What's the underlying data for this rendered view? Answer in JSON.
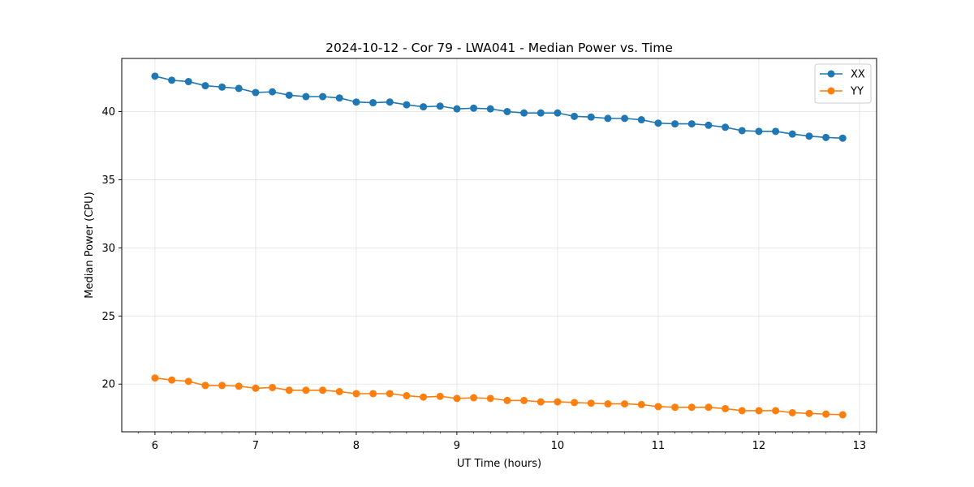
{
  "chart_data": {
    "type": "line",
    "title": "2024-10-12 - Cor 79 - LWA041 - Median Power vs. Time",
    "xlabel": "UT Time (hours)",
    "ylabel": "Median Power (CPU)",
    "xlim": [
      5.67,
      13.17
    ],
    "ylim": [
      16.5,
      43.9
    ],
    "xticks": [
      6,
      7,
      8,
      9,
      10,
      11,
      12,
      13
    ],
    "yticks": [
      20,
      25,
      30,
      35,
      40
    ],
    "grid": true,
    "legend_position": "top-right",
    "x": [
      6.0,
      6.1667,
      6.3333,
      6.5,
      6.6667,
      6.8333,
      7.0,
      7.1667,
      7.3333,
      7.5,
      7.6667,
      7.8333,
      8.0,
      8.1667,
      8.3333,
      8.5,
      8.6667,
      8.8333,
      9.0,
      9.1667,
      9.3333,
      9.5,
      9.6667,
      9.8333,
      10.0,
      10.1667,
      10.3333,
      10.5,
      10.6667,
      10.8333,
      11.0,
      11.1667,
      11.3333,
      11.5,
      11.6667,
      11.8333,
      12.0,
      12.1667,
      12.3333,
      12.5,
      12.6667,
      12.8333
    ],
    "series": [
      {
        "name": "XX",
        "color": "#1f77b4",
        "values": [
          42.6,
          42.3,
          42.2,
          41.9,
          41.8,
          41.7,
          41.4,
          41.45,
          41.2,
          41.1,
          41.1,
          41.0,
          40.7,
          40.65,
          40.7,
          40.5,
          40.35,
          40.4,
          40.2,
          40.25,
          40.2,
          40.0,
          39.9,
          39.9,
          39.9,
          39.65,
          39.6,
          39.5,
          39.5,
          39.4,
          39.15,
          39.1,
          39.1,
          39.0,
          38.85,
          38.6,
          38.55,
          38.55,
          38.35,
          38.2,
          38.1,
          38.05
        ]
      },
      {
        "name": "YY",
        "color": "#ff7f0e",
        "values": [
          20.45,
          20.3,
          20.2,
          19.9,
          19.9,
          19.85,
          19.7,
          19.75,
          19.55,
          19.55,
          19.55,
          19.45,
          19.3,
          19.3,
          19.3,
          19.15,
          19.05,
          19.1,
          18.95,
          19.0,
          18.95,
          18.8,
          18.8,
          18.7,
          18.7,
          18.65,
          18.6,
          18.55,
          18.55,
          18.5,
          18.35,
          18.3,
          18.3,
          18.3,
          18.2,
          18.05,
          18.05,
          18.05,
          17.9,
          17.85,
          17.8,
          17.75
        ]
      }
    ]
  }
}
